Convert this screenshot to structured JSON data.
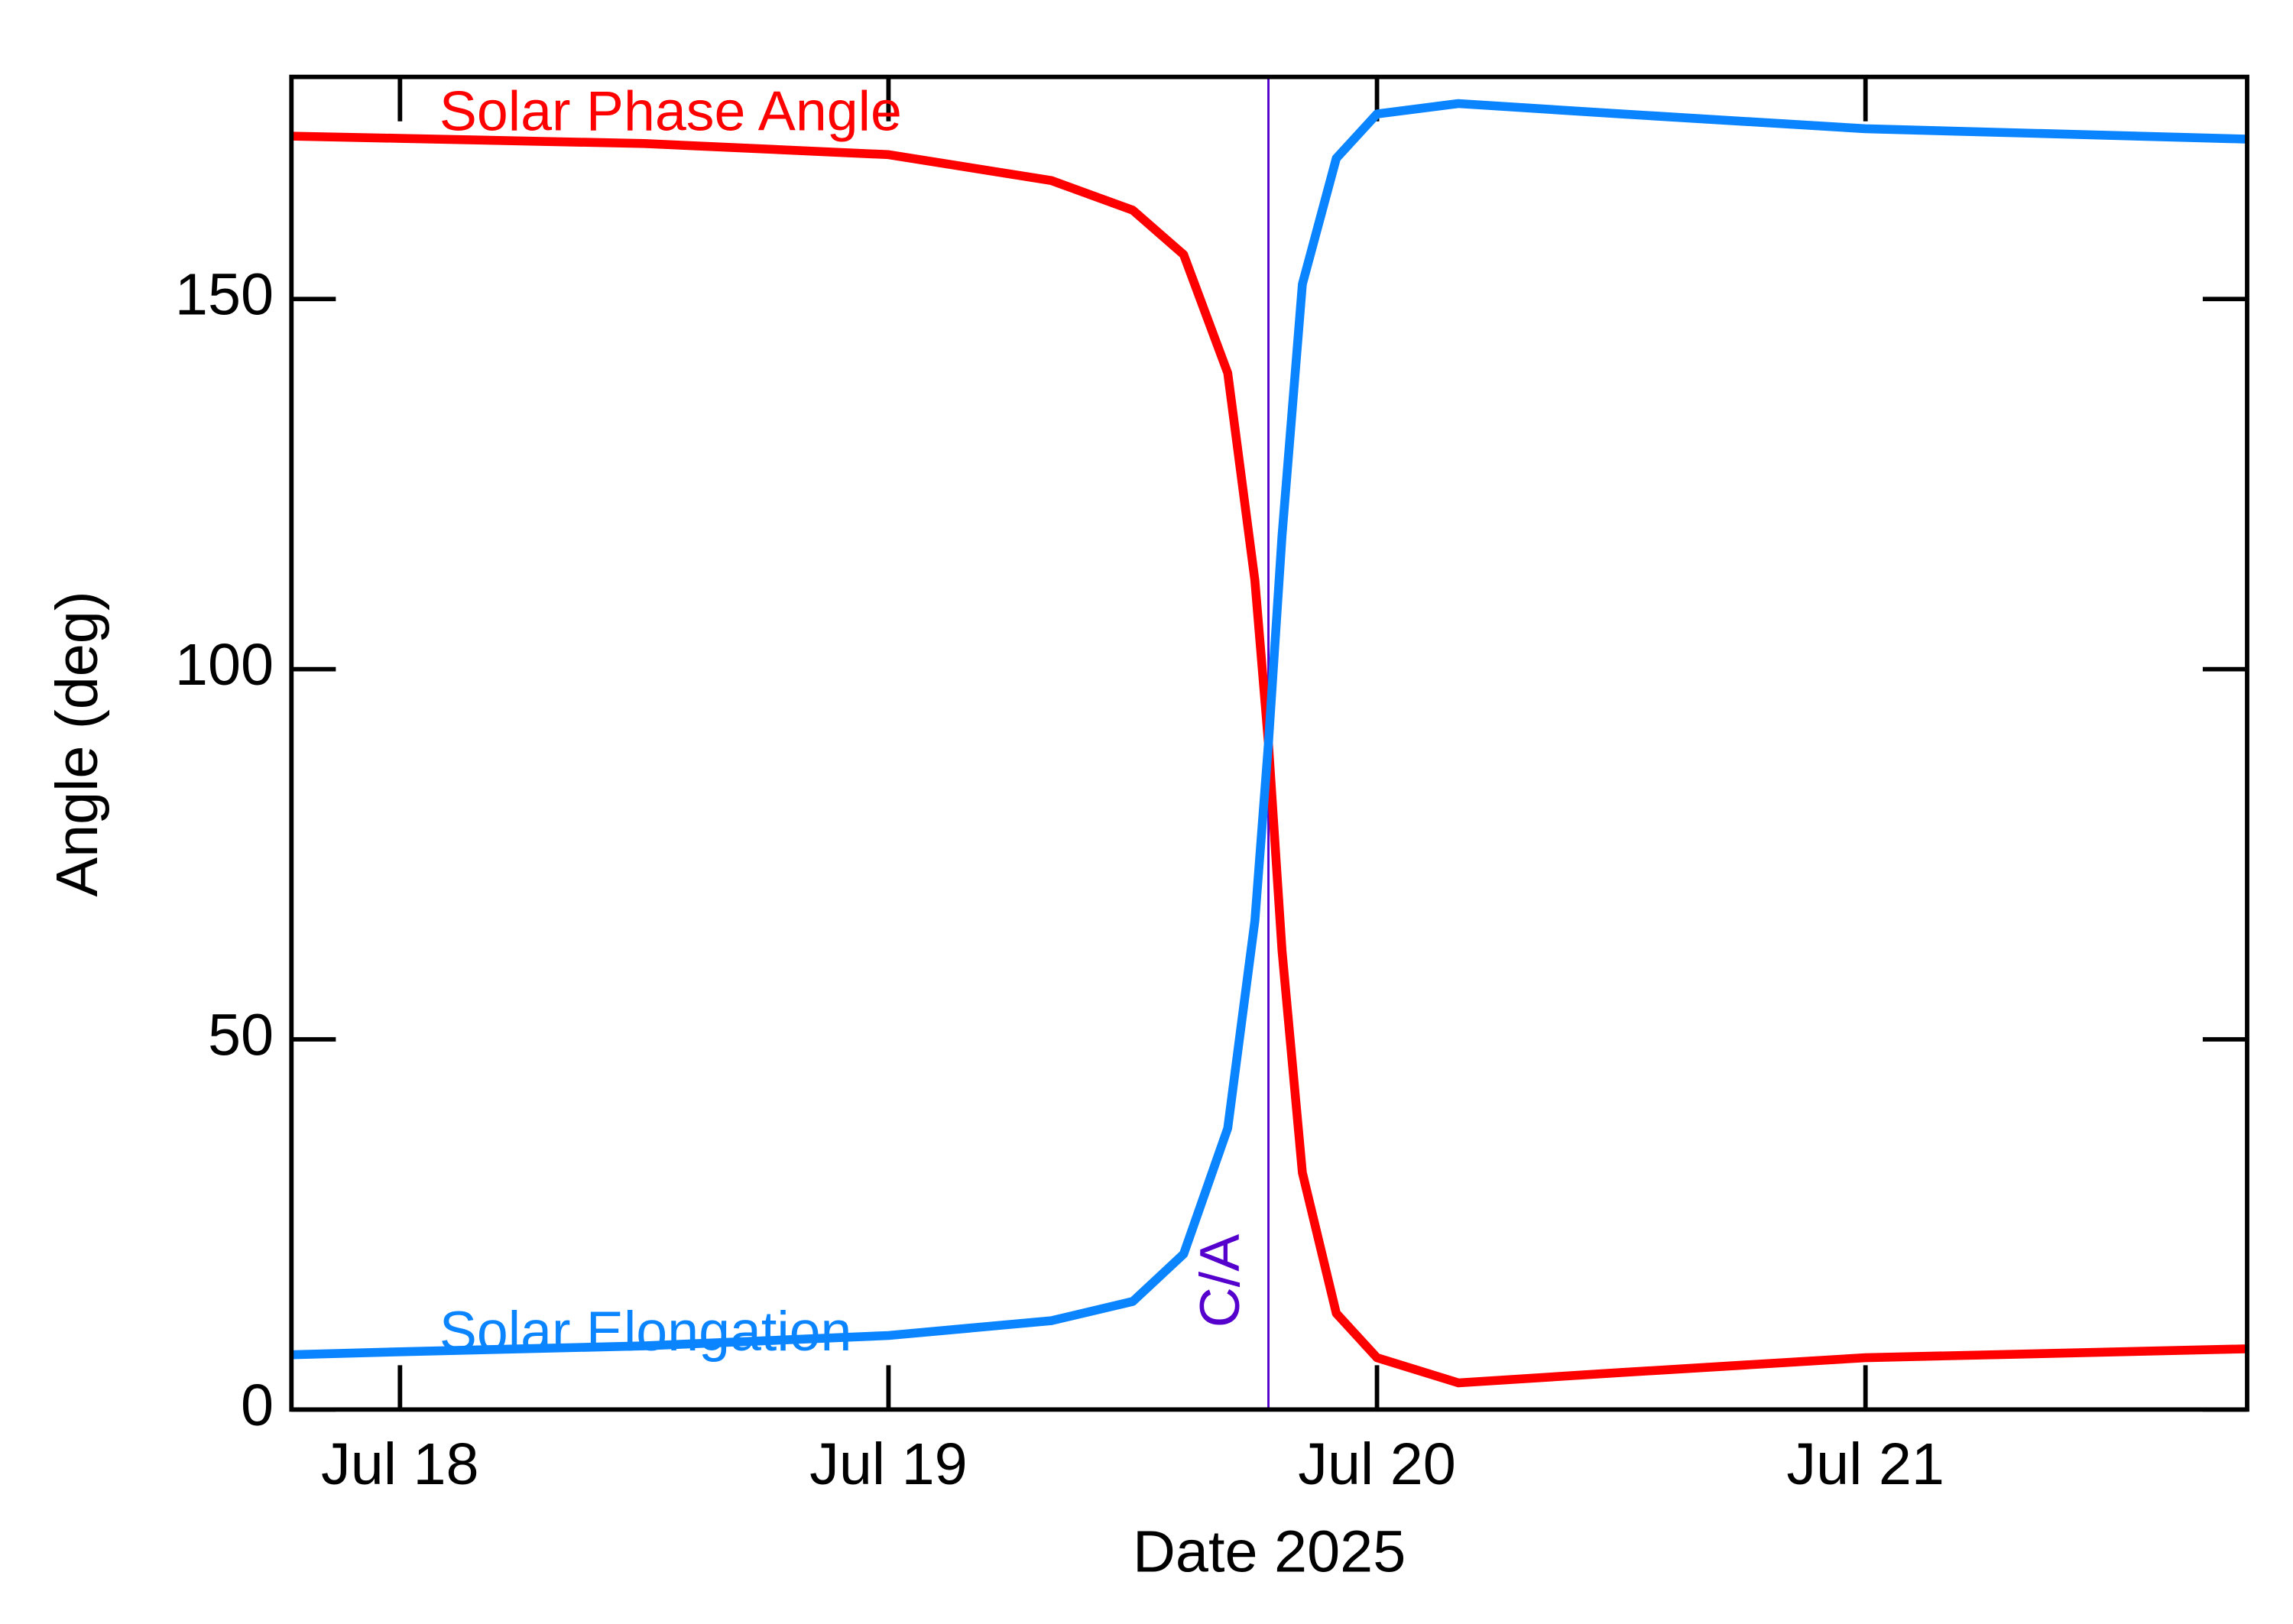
{
  "chart_data": {
    "type": "line",
    "x_label": "Date 2025",
    "y_label": "Angle (deg)",
    "x": [
      "2025-07-17T18:40",
      "2025-07-18T00:00",
      "2025-07-18T12:00",
      "2025-07-19T00:00",
      "2025-07-19T08:00",
      "2025-07-19T12:00",
      "2025-07-19T14:30",
      "2025-07-19T16:40",
      "2025-07-19T18:00",
      "2025-07-19T18:40",
      "2025-07-19T19:20",
      "2025-07-19T20:20",
      "2025-07-19T22:00",
      "2025-07-20T00:00",
      "2025-07-20T04:00",
      "2025-07-20T12:00",
      "2025-07-21T00:00",
      "2025-07-21T18:45"
    ],
    "series": [
      {
        "name": "Solar Phase Angle",
        "color": "#ff0000",
        "values": [
          172,
          171.7,
          171,
          169.5,
          166,
          162,
          156,
          140,
          112,
          90,
          62,
          32,
          13,
          7,
          3.6,
          5,
          7,
          8.2
        ]
      },
      {
        "name": "Solar Elongation",
        "color": "#0a84ff",
        "values": [
          7.4,
          7.8,
          8.6,
          10,
          12,
          14.6,
          21,
          38,
          66,
          90,
          118,
          152,
          169,
          175,
          176.4,
          175,
          173,
          171.6
        ]
      }
    ],
    "annotations": [
      {
        "text": "C/A",
        "x": "2025-07-19T18:40",
        "color": "#5500cc"
      }
    ],
    "xlim": [
      "2025-07-17T18:40",
      "2025-07-21T18:45"
    ],
    "xticks": [
      {
        "value": "2025-07-18T00:00",
        "label": "Jul 18"
      },
      {
        "value": "2025-07-19T00:00",
        "label": "Jul 19"
      },
      {
        "value": "2025-07-20T00:00",
        "label": "Jul 20"
      },
      {
        "value": "2025-07-21T00:00",
        "label": "Jul 21"
      }
    ],
    "ylim": [
      0,
      180
    ],
    "yticks": [
      0,
      50,
      100,
      150
    ],
    "grid": false
  }
}
